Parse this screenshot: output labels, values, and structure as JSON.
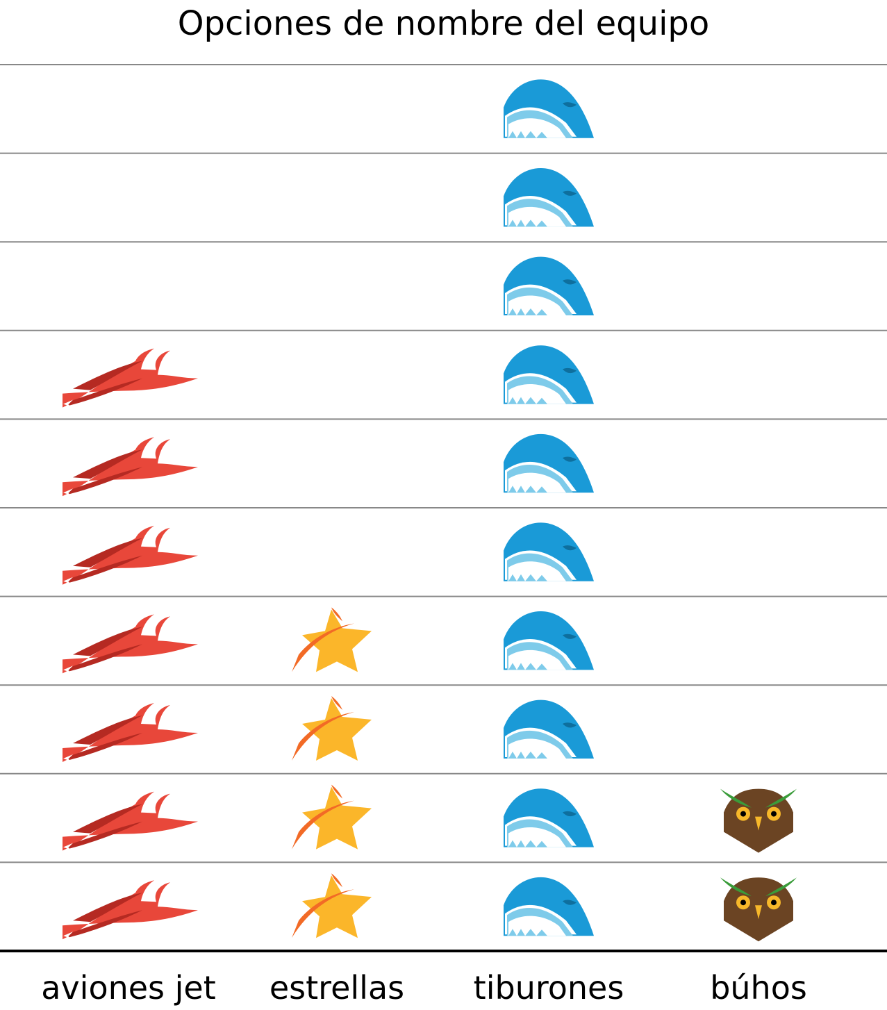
{
  "chart_data": {
    "type": "pictograph",
    "title": "Opciones de nombre del equipo",
    "categories": [
      "aviones jet",
      "estrellas",
      "tiburones",
      "búhos"
    ],
    "values": [
      7,
      4,
      10,
      2
    ],
    "max_rows": 10,
    "icons": [
      "jet-icon",
      "star-icon",
      "shark-icon",
      "owl-icon"
    ],
    "colors": {
      "jet": "#e8473a",
      "jet_dark": "#b52a22",
      "star": "#fbb62a",
      "star_swoosh": "#f26a26",
      "shark": "#1a9ad7",
      "shark_teeth": "#7ecbea",
      "owl": "#6b4423",
      "owl_brows": "#3a9c3a",
      "owl_eyes": "#f7b82a",
      "gridline": "#888888",
      "axis": "#000000"
    }
  }
}
